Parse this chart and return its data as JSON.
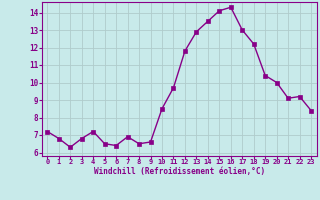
{
  "x": [
    0,
    1,
    2,
    3,
    4,
    5,
    6,
    7,
    8,
    9,
    10,
    11,
    12,
    13,
    14,
    15,
    16,
    17,
    18,
    19,
    20,
    21,
    22,
    23
  ],
  "y": [
    7.2,
    6.8,
    6.3,
    6.8,
    7.2,
    6.5,
    6.4,
    6.9,
    6.5,
    6.6,
    8.5,
    9.7,
    11.8,
    12.9,
    13.5,
    14.1,
    14.3,
    13.0,
    12.2,
    10.4,
    10.0,
    9.1,
    9.2,
    8.4
  ],
  "line_color": "#880088",
  "marker": "s",
  "markersize": 2.5,
  "linewidth": 1.0,
  "bg_color": "#c8eaea",
  "grid_color": "#b0cccc",
  "xlabel": "Windchill (Refroidissement éolien,°C)",
  "xlim": [
    -0.5,
    23.5
  ],
  "ylim": [
    5.8,
    14.6
  ],
  "yticks": [
    6,
    7,
    8,
    9,
    10,
    11,
    12,
    13,
    14
  ],
  "xticks": [
    0,
    1,
    2,
    3,
    4,
    5,
    6,
    7,
    8,
    9,
    10,
    11,
    12,
    13,
    14,
    15,
    16,
    17,
    18,
    19,
    20,
    21,
    22,
    23
  ],
  "tick_color": "#880088",
  "label_color": "#880088",
  "spine_color": "#880088",
  "axis_line_color": "#555577"
}
